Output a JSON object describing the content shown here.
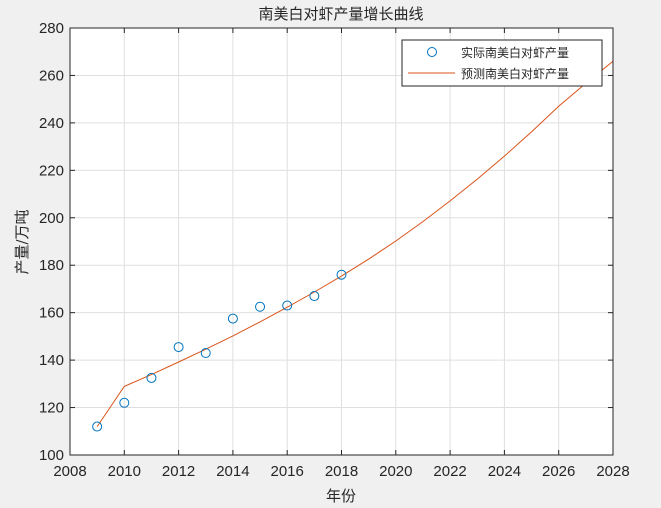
{
  "chart_data": {
    "type": "line",
    "title": "南美白对虾产量增长曲线",
    "xlabel": "年份",
    "ylabel": "产量/万吨",
    "xlim": [
      2008,
      2028
    ],
    "ylim": [
      100,
      280
    ],
    "xticks": [
      "2008",
      "2010",
      "2012",
      "2014",
      "2016",
      "2018",
      "2020",
      "2022",
      "2024",
      "2026",
      "2028"
    ],
    "yticks": [
      "100",
      "120",
      "140",
      "160",
      "180",
      "200",
      "220",
      "240",
      "260",
      "280"
    ],
    "grid": true,
    "legend_position": "top-right",
    "series": [
      {
        "name": "实际南美白对虾产量",
        "style": "scatter",
        "marker": "circle",
        "color": "#0072BD",
        "x": [
          2009,
          2010,
          2011,
          2012,
          2013,
          2014,
          2015,
          2016,
          2017,
          2018
        ],
        "y": [
          112,
          122,
          132.5,
          145.5,
          143,
          157.5,
          162.5,
          163,
          167,
          176
        ]
      },
      {
        "name": "预测南美白对虾产量",
        "style": "line",
        "color": "#D95319",
        "x": [
          2009,
          2010,
          2011,
          2012,
          2013,
          2014,
          2015,
          2016,
          2017,
          2018,
          2019,
          2020,
          2021,
          2022,
          2023,
          2024,
          2025,
          2026,
          2027,
          2028
        ],
        "y": [
          112,
          128.9,
          133.9,
          139.2,
          144.6,
          150.2,
          156.1,
          162.3,
          168.7,
          175.4,
          182.6,
          190.2,
          198.4,
          207.1,
          216.3,
          226.0,
          236.2,
          247.0,
          256.7,
          266
        ]
      }
    ]
  }
}
